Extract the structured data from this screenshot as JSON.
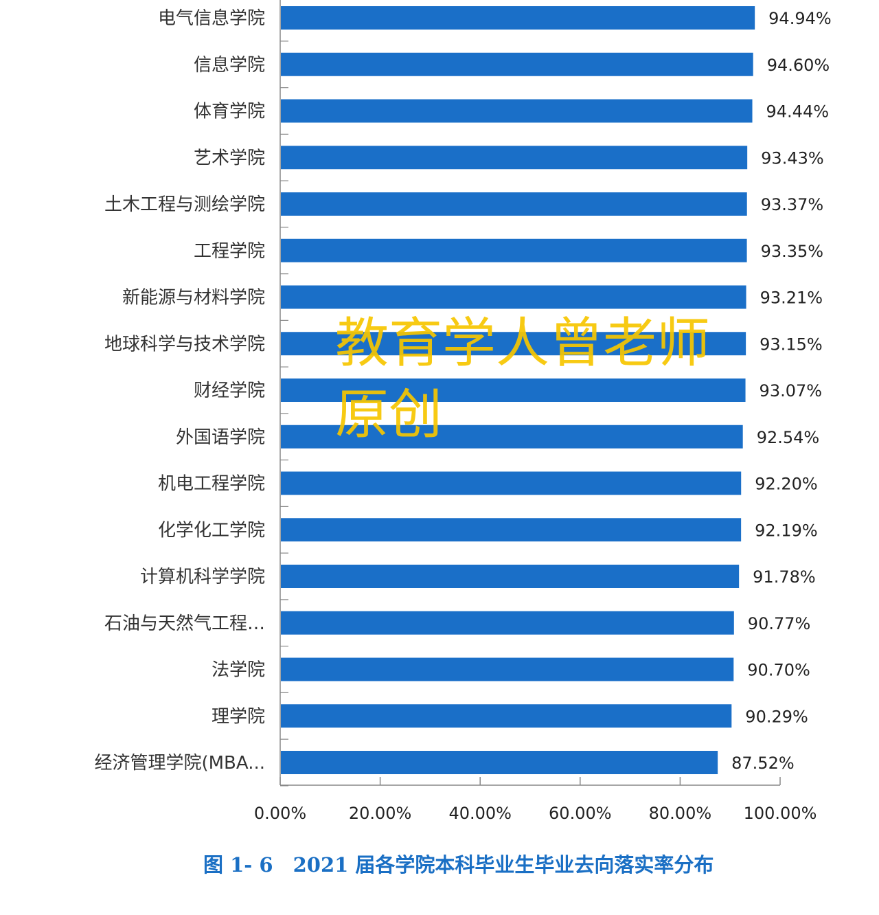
{
  "chart_data": {
    "type": "bar",
    "orientation": "horizontal",
    "categories": [
      "电气信息学院",
      "信息学院",
      "体育学院",
      "艺术学院",
      "土木工程与测绘学院",
      "工程学院",
      "新能源与材料学院",
      "地球科学与技术学院",
      "财经学院",
      "外国语学院",
      "机电工程学院",
      "化学化工学院",
      "计算机科学学院",
      "石油与天然气工程…",
      "法学院",
      "理学院",
      "经济管理学院(MBA..."
    ],
    "values": [
      94.94,
      94.6,
      94.44,
      93.43,
      93.37,
      93.35,
      93.21,
      93.15,
      93.07,
      92.54,
      92.2,
      92.19,
      91.78,
      90.77,
      90.7,
      90.29,
      87.52
    ],
    "value_labels": [
      "94.94%",
      "94.60%",
      "94.44%",
      "93.43%",
      "93.37%",
      "93.35%",
      "93.21%",
      "93.15%",
      "93.07%",
      "92.54%",
      "92.20%",
      "92.19%",
      "91.78%",
      "90.77%",
      "90.70%",
      "90.29%",
      "87.52%"
    ],
    "xlim": [
      0,
      100
    ],
    "x_ticks": [
      "0.00%",
      "20.00%",
      "40.00%",
      "60.00%",
      "80.00%",
      "100.00%"
    ],
    "title": "图 1- 6　2021 届各学院本科毕业生毕业去向落实率分布",
    "xlabel": "",
    "ylabel": "",
    "grid": false,
    "bar_color": "#1a6fc8",
    "title_color": "#1a6fc4"
  },
  "watermark": {
    "line1": "教育学人曾老师",
    "line2": "原创",
    "color": "#f7c600"
  }
}
